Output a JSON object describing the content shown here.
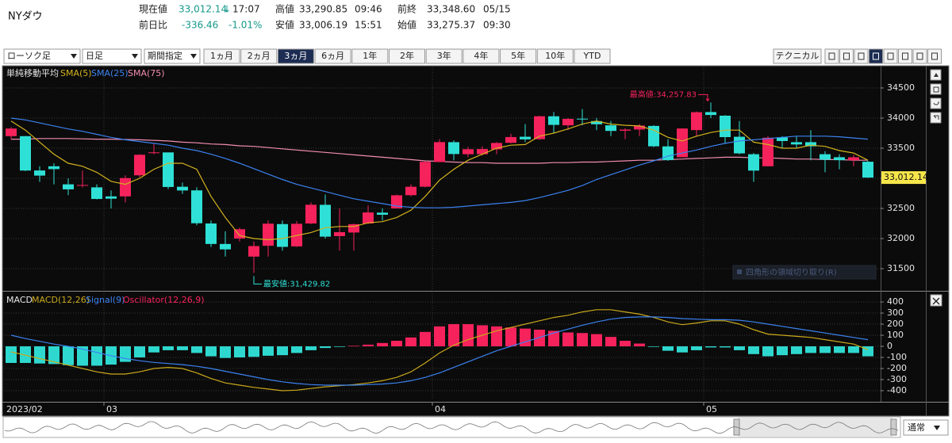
{
  "header": {
    "name": "NYダウ",
    "current": {
      "label": "現在値",
      "value": "33,012.14",
      "arrow": "↓",
      "time": "17:07"
    },
    "change": {
      "label": "前日比",
      "value": "-336.46",
      "percent": "-1.01%"
    },
    "high": {
      "label": "高値",
      "value": "33,290.85",
      "time": "09:46"
    },
    "low": {
      "label": "安値",
      "value": "33,006.19",
      "time": "15:51"
    },
    "prev_close": {
      "label": "前終",
      "value": "33,348.60",
      "time": "05/15"
    },
    "open": {
      "label": "始値",
      "value": "33,275.37",
      "time": "09:30"
    }
  },
  "toolbar": {
    "dropdowns": [
      "ローソク足",
      "日足",
      "期間指定"
    ],
    "periods": [
      "1ヵ月",
      "2ヵ月",
      "3ヵ月",
      "6ヵ月",
      "1年",
      "2年",
      "3年",
      "4年",
      "5年",
      "10年",
      "YTD"
    ],
    "active_period": "3ヵ月",
    "technical": "テクニカル"
  },
  "navigator": {
    "mode": "通常"
  },
  "chart_data": [
    {
      "type": "candlestick",
      "legend_title": "単純移動平均",
      "categories": [
        "2023/02",
        null,
        null,
        null,
        null,
        null,
        null,
        "03",
        null,
        null,
        null,
        null,
        null,
        null,
        null,
        null,
        null,
        null,
        null,
        null,
        null,
        null,
        null,
        null,
        null,
        null,
        null,
        null,
        null,
        null,
        "04",
        null,
        null,
        null,
        null,
        null,
        null,
        null,
        null,
        null,
        null,
        null,
        null,
        null,
        null,
        null,
        null,
        null,
        null,
        "05",
        null,
        null,
        null,
        null,
        null,
        null,
        null,
        null,
        null,
        null,
        null
      ],
      "open": [
        33700,
        33700,
        33130,
        33200,
        32900,
        32880,
        32850,
        32700,
        32700,
        33050,
        33430,
        33430,
        32860,
        32800,
        32250,
        31910,
        32000,
        31700,
        31880,
        32240,
        31870,
        32250,
        32560,
        32040,
        32100,
        32250,
        32430,
        32500,
        32720,
        32860,
        33270,
        33600,
        33400,
        33400,
        33480,
        33590,
        33690,
        33650,
        34030,
        33880,
        33990,
        33950,
        33880,
        33790,
        33810,
        33870,
        33530,
        33350,
        33800,
        34100,
        34040,
        33690,
        33400,
        33200,
        33680,
        33600,
        33600,
        33400,
        33350,
        33300,
        33275.37
      ],
      "high": [
        33850,
        33700,
        33200,
        33250,
        33000,
        33130,
        32900,
        32800,
        33050,
        33400,
        33570,
        33430,
        32930,
        32850,
        32300,
        32120,
        32180,
        31950,
        32300,
        32300,
        32290,
        32600,
        32730,
        32500,
        32250,
        32550,
        32500,
        32730,
        32900,
        33280,
        33650,
        33630,
        33520,
        33530,
        33600,
        33740,
        33900,
        34040,
        34100,
        34000,
        34150,
        34000,
        33950,
        33830,
        33900,
        33880,
        33650,
        33830,
        34110,
        34257.83,
        34050,
        33950,
        33420,
        33700,
        33700,
        33700,
        33800,
        33450,
        33400,
        33390,
        33290.85
      ],
      "low": [
        33650,
        33120,
        32940,
        32900,
        32720,
        32850,
        32650,
        32500,
        32600,
        33020,
        33400,
        32820,
        32740,
        32220,
        31860,
        31700,
        31950,
        31429.82,
        31700,
        31800,
        31860,
        32240,
        32000,
        31800,
        31800,
        32240,
        32300,
        32500,
        32700,
        32850,
        33270,
        33300,
        33350,
        33380,
        33400,
        33580,
        33600,
        33640,
        33750,
        33800,
        33880,
        33800,
        33700,
        33650,
        33700,
        33520,
        33290,
        33350,
        33700,
        34000,
        33570,
        33400,
        32940,
        33200,
        33500,
        33500,
        33300,
        33100,
        33150,
        33200,
        33006.19
      ],
      "close": [
        33826,
        33129,
        33045,
        33153,
        32817,
        32889,
        32657,
        32662,
        33004,
        33391,
        33431,
        32856,
        32798,
        32254,
        31910,
        31820,
        32155,
        31875,
        32247,
        31862,
        32245,
        32561,
        32031,
        32106,
        32238,
        32433,
        32395,
        32718,
        32860,
        33274,
        33601,
        33403,
        33483,
        33486,
        33587,
        33685,
        33647,
        34030,
        33887,
        33987,
        33977,
        33897,
        33787,
        33809,
        33876,
        33531,
        33302,
        33827,
        34098,
        34051,
        33684,
        33414,
        33128,
        33674,
        33619,
        33562,
        33531,
        33309,
        33301,
        33349,
        33012.14
      ],
      "last_label": "33,012.14",
      "high_label": "最高値:34,257.83",
      "low_label": "最安値:31,429.82",
      "up_color": "#f5225c",
      "down_color": "#2fe0d6",
      "ylim": [
        31158,
        34842
      ],
      "yticks": [
        31500,
        32000,
        32500,
        33000,
        33500,
        34000,
        34500
      ],
      "grid": true,
      "tooltip": "四角形の領域切り取り(R)",
      "series": [
        {
          "name": "SMA(5)",
          "color": "#d2b21e",
          "values": [
            33950,
            33800,
            33600,
            33400,
            33250,
            33200,
            33100,
            32950,
            32900,
            33000,
            33150,
            33250,
            33250,
            33150,
            32700,
            32350,
            32050,
            32000,
            31980,
            32000,
            32050,
            32100,
            32180,
            32200,
            32200,
            32260,
            32280,
            32350,
            32470,
            32700,
            32970,
            33150,
            33300,
            33400,
            33500,
            33550,
            33560,
            33700,
            33750,
            33820,
            33900,
            33950,
            33900,
            33880,
            33870,
            33800,
            33680,
            33620,
            33700,
            33760,
            33800,
            33800,
            33600,
            33560,
            33500,
            33500,
            33550,
            33530,
            33460,
            33420,
            33300
          ]
        },
        {
          "name": "SMA(25)",
          "color": "#3b82f0",
          "values": [
            34000,
            33970,
            33920,
            33870,
            33820,
            33780,
            33730,
            33680,
            33640,
            33610,
            33580,
            33550,
            33500,
            33460,
            33400,
            33330,
            33250,
            33160,
            33070,
            32980,
            32900,
            32840,
            32780,
            32720,
            32660,
            32620,
            32580,
            32540,
            32520,
            32510,
            32510,
            32520,
            32540,
            32560,
            32580,
            32600,
            32630,
            32680,
            32740,
            32800,
            32880,
            32980,
            33060,
            33140,
            33220,
            33290,
            33370,
            33420,
            33470,
            33530,
            33580,
            33620,
            33640,
            33660,
            33680,
            33700,
            33700,
            33700,
            33690,
            33670,
            33650
          ]
        },
        {
          "name": "SMA(75)",
          "color": "#f28db2",
          "values": [
            33650,
            33650,
            33660,
            33660,
            33660,
            33655,
            33650,
            33650,
            33645,
            33640,
            33630,
            33620,
            33600,
            33590,
            33570,
            33560,
            33540,
            33530,
            33510,
            33490,
            33470,
            33450,
            33430,
            33410,
            33390,
            33370,
            33350,
            33330,
            33310,
            33290,
            33280,
            33270,
            33260,
            33260,
            33250,
            33250,
            33250,
            33250,
            33260,
            33260,
            33270,
            33270,
            33280,
            33290,
            33300,
            33300,
            33310,
            33320,
            33330,
            33340,
            33350,
            33350,
            33340,
            33340,
            33330,
            33320,
            33320,
            33310,
            33310,
            33300,
            33300
          ]
        }
      ]
    },
    {
      "type": "macd",
      "legend_title": "MACD",
      "ylim": [
        -486,
        479
      ],
      "yticks": [
        -400,
        -300,
        -200,
        -100,
        0,
        100,
        200,
        300,
        400
      ],
      "grid": true,
      "series": [
        {
          "name": "MACD(12,26)",
          "color": "#c9a81b",
          "values": [
            -50,
            -80,
            -110,
            -140,
            -170,
            -200,
            -230,
            -250,
            -250,
            -230,
            -200,
            -190,
            -200,
            -240,
            -290,
            -330,
            -350,
            -370,
            -385,
            -400,
            -395,
            -380,
            -365,
            -355,
            -345,
            -330,
            -310,
            -280,
            -230,
            -150,
            -60,
            10,
            60,
            100,
            140,
            170,
            200,
            230,
            260,
            280,
            310,
            330,
            330,
            310,
            290,
            260,
            220,
            195,
            210,
            230,
            230,
            200,
            150,
            110,
            100,
            90,
            80,
            60,
            40,
            20,
            -30
          ]
        },
        {
          "name": "Signal(9)",
          "color": "#3b82f0",
          "values": [
            100,
            70,
            45,
            20,
            0,
            -25,
            -55,
            -85,
            -110,
            -130,
            -145,
            -155,
            -165,
            -180,
            -200,
            -225,
            -250,
            -275,
            -300,
            -320,
            -335,
            -345,
            -350,
            -350,
            -350,
            -345,
            -340,
            -330,
            -310,
            -280,
            -240,
            -190,
            -140,
            -90,
            -40,
            0,
            40,
            80,
            120,
            155,
            190,
            220,
            245,
            260,
            265,
            265,
            260,
            250,
            245,
            240,
            240,
            235,
            220,
            200,
            180,
            160,
            140,
            120,
            100,
            80,
            60
          ]
        },
        {
          "name": "Oscillator(12,26,9)",
          "color": "#f5225c",
          "neg_color": "#2fd8cf",
          "bars": true,
          "values": [
            -150,
            -150,
            -155,
            -160,
            -170,
            -175,
            -175,
            -165,
            -140,
            -100,
            -55,
            -35,
            -35,
            -60,
            -90,
            -105,
            -100,
            -95,
            -85,
            -80,
            -60,
            -35,
            -15,
            -5,
            5,
            15,
            30,
            50,
            80,
            130,
            180,
            200,
            200,
            190,
            180,
            170,
            160,
            150,
            140,
            125,
            120,
            110,
            85,
            50,
            25,
            -5,
            -40,
            -55,
            -35,
            -10,
            -10,
            -35,
            -70,
            -90,
            -80,
            -70,
            -60,
            -60,
            -60,
            -60,
            -90
          ]
        }
      ]
    }
  ]
}
